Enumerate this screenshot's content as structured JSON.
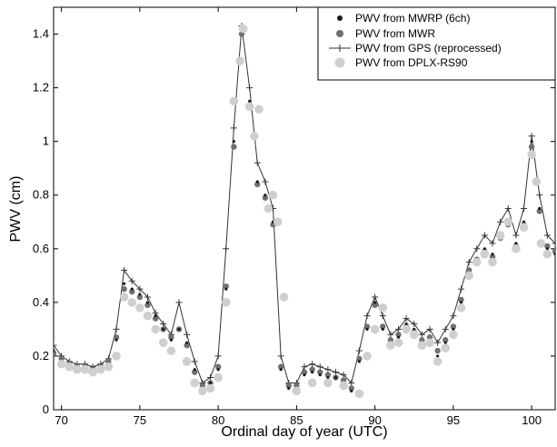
{
  "chart_data": {
    "type": "scatter",
    "title": "",
    "xlabel": "Ordinal day of year (UTC)",
    "ylabel": "PWV (cm)",
    "xlim": [
      69.5,
      101.5
    ],
    "ylim": [
      0,
      1.5
    ],
    "x_ticks": [
      "70",
      "75",
      "80",
      "85",
      "90",
      "95",
      "100"
    ],
    "y_ticks": [
      "0",
      "0.2",
      "0.4",
      "0.6",
      "0.8",
      "1",
      "1.2",
      "1.4"
    ],
    "grid": false,
    "legend_position": "top-right",
    "colors": {
      "mwrp": "#1a1a1a",
      "mwr": "#707070",
      "gps": "#333333",
      "dplx": "#cfcfcf"
    },
    "series": [
      {
        "name": "PWV from MWRP (6ch)",
        "marker": "small-dot",
        "x": [
          69.5,
          70.0,
          70.5,
          71.0,
          71.5,
          72.0,
          72.5,
          73.0,
          73.5,
          74.0,
          74.5,
          75.0,
          75.5,
          76.0,
          76.5,
          77.0,
          77.5,
          78.0,
          78.5,
          79.0,
          79.5,
          80.0,
          80.5,
          81.0,
          81.5,
          82.0,
          82.5,
          83.0,
          83.5,
          84.0,
          84.5,
          85.0,
          85.5,
          86.0,
          86.5,
          87.0,
          87.5,
          88.0,
          88.5,
          89.0,
          89.5,
          90.0,
          90.5,
          91.0,
          91.5,
          92.0,
          92.5,
          93.0,
          93.5,
          94.0,
          94.5,
          95.0,
          95.5,
          96.0,
          96.5,
          97.0,
          97.5,
          98.0,
          98.5,
          99.0,
          99.5,
          100.0,
          100.5,
          101.0,
          101.5
        ],
        "y": [
          0.22,
          0.18,
          0.16,
          0.15,
          0.15,
          0.14,
          0.15,
          0.17,
          0.26,
          0.47,
          0.45,
          0.43,
          0.4,
          0.35,
          0.3,
          0.26,
          0.3,
          0.25,
          0.15,
          0.08,
          0.1,
          0.15,
          0.45,
          1.0,
          1.42,
          1.15,
          0.85,
          0.8,
          0.7,
          0.15,
          0.08,
          0.08,
          0.13,
          0.14,
          0.13,
          0.12,
          0.12,
          0.1,
          0.07,
          0.18,
          0.3,
          0.4,
          0.3,
          0.25,
          0.27,
          0.32,
          0.3,
          0.25,
          0.26,
          0.2,
          0.25,
          0.3,
          0.4,
          0.5,
          0.55,
          0.6,
          0.58,
          0.65,
          0.7,
          0.62,
          0.7,
          1.0,
          0.75,
          0.6,
          0.58
        ]
      },
      {
        "name": "PWV from MWR",
        "marker": "dot",
        "x": [
          69.5,
          70.0,
          70.5,
          71.0,
          71.5,
          72.0,
          72.5,
          73.0,
          73.5,
          74.0,
          74.5,
          75.0,
          75.5,
          76.0,
          76.5,
          77.0,
          77.5,
          78.0,
          78.5,
          79.0,
          79.5,
          80.0,
          80.5,
          81.0,
          81.5,
          82.0,
          82.5,
          83.0,
          83.5,
          84.0,
          84.5,
          85.0,
          85.5,
          86.0,
          86.5,
          87.0,
          87.5,
          88.0,
          88.5,
          89.0,
          89.5,
          90.0,
          90.5,
          91.0,
          91.5,
          92.0,
          92.5,
          93.0,
          93.5,
          94.0,
          94.5,
          95.0,
          95.5,
          96.0,
          96.5,
          97.0,
          97.5,
          98.0,
          98.5,
          99.0,
          99.5,
          100.0,
          100.5,
          101.0,
          101.5
        ],
        "y": [
          0.21,
          0.19,
          0.17,
          0.16,
          0.16,
          0.15,
          0.16,
          0.18,
          0.27,
          0.45,
          0.44,
          0.42,
          0.39,
          0.34,
          0.3,
          0.27,
          0.3,
          0.24,
          0.14,
          0.09,
          0.1,
          0.16,
          0.46,
          0.98,
          1.4,
          1.13,
          0.84,
          0.79,
          0.69,
          0.16,
          0.09,
          0.09,
          0.14,
          0.15,
          0.14,
          0.13,
          0.12,
          0.11,
          0.08,
          0.19,
          0.31,
          0.39,
          0.31,
          0.26,
          0.28,
          0.31,
          0.29,
          0.26,
          0.27,
          0.22,
          0.26,
          0.31,
          0.41,
          0.52,
          0.56,
          0.59,
          0.57,
          0.64,
          0.69,
          0.61,
          0.69,
          0.98,
          0.74,
          0.61,
          0.59
        ]
      },
      {
        "name": "PWV from GPS (reprocessed)",
        "marker": "plus-line",
        "x": [
          69.5,
          70.0,
          70.5,
          71.0,
          71.5,
          72.0,
          72.5,
          73.0,
          73.5,
          74.0,
          74.5,
          75.0,
          75.5,
          76.0,
          76.5,
          77.0,
          77.5,
          78.0,
          78.5,
          79.0,
          79.5,
          80.0,
          80.5,
          81.0,
          81.5,
          82.0,
          82.5,
          83.0,
          83.5,
          84.0,
          84.5,
          85.0,
          85.5,
          86.0,
          86.5,
          87.0,
          87.5,
          88.0,
          88.5,
          89.0,
          89.5,
          90.0,
          90.5,
          91.0,
          91.5,
          92.0,
          92.5,
          93.0,
          93.5,
          94.0,
          94.5,
          95.0,
          95.5,
          96.0,
          96.5,
          97.0,
          97.5,
          98.0,
          98.5,
          99.0,
          99.5,
          100.0,
          100.5,
          101.0,
          101.5
        ],
        "y": [
          0.24,
          0.2,
          0.18,
          0.17,
          0.17,
          0.16,
          0.17,
          0.19,
          0.3,
          0.52,
          0.48,
          0.45,
          0.42,
          0.36,
          0.32,
          0.28,
          0.4,
          0.28,
          0.18,
          0.1,
          0.12,
          0.2,
          0.6,
          1.05,
          1.43,
          1.2,
          0.92,
          0.85,
          0.75,
          0.2,
          0.1,
          0.1,
          0.16,
          0.17,
          0.16,
          0.15,
          0.14,
          0.13,
          0.1,
          0.22,
          0.35,
          0.42,
          0.35,
          0.28,
          0.3,
          0.34,
          0.32,
          0.28,
          0.3,
          0.25,
          0.3,
          0.35,
          0.45,
          0.55,
          0.6,
          0.65,
          0.62,
          0.7,
          0.75,
          0.65,
          0.75,
          1.02,
          0.8,
          0.65,
          0.62
        ]
      },
      {
        "name": "PWV from DPLX-RS90",
        "marker": "large-circle",
        "x": [
          70.0,
          70.5,
          71.0,
          71.5,
          72.0,
          72.5,
          73.0,
          73.5,
          74.0,
          74.5,
          75.0,
          75.5,
          76.0,
          76.5,
          77.0,
          78.0,
          78.5,
          79.0,
          79.5,
          80.0,
          80.5,
          81.0,
          81.4,
          81.6,
          82.0,
          82.3,
          82.6,
          83.2,
          83.5,
          83.8,
          84.2,
          85.0,
          86.0,
          87.0,
          88.0,
          89.0,
          89.5,
          90.0,
          90.5,
          91.0,
          91.5,
          92.0,
          92.5,
          93.0,
          93.5,
          94.0,
          94.5,
          95.0,
          95.5,
          96.0,
          96.5,
          97.0,
          97.5,
          98.0,
          98.5,
          99.0,
          99.5,
          100.0,
          100.3,
          100.6,
          101.0
        ],
        "y": [
          0.17,
          0.16,
          0.15,
          0.15,
          0.14,
          0.15,
          0.16,
          0.2,
          0.42,
          0.4,
          0.38,
          0.35,
          0.3,
          0.25,
          0.22,
          0.18,
          0.1,
          0.07,
          0.08,
          0.12,
          0.4,
          1.15,
          1.3,
          1.42,
          1.13,
          1.02,
          1.12,
          0.75,
          0.8,
          0.7,
          0.42,
          0.07,
          0.1,
          0.1,
          0.09,
          0.06,
          0.2,
          0.3,
          0.38,
          0.24,
          0.25,
          0.3,
          0.28,
          0.24,
          0.25,
          0.18,
          0.23,
          0.28,
          0.38,
          0.5,
          0.55,
          0.58,
          0.55,
          0.65,
          0.7,
          0.6,
          0.68,
          0.95,
          0.85,
          0.62,
          0.58
        ]
      }
    ]
  }
}
